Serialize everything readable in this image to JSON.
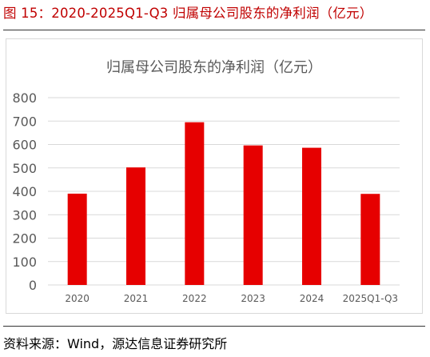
{
  "figure": {
    "title": "图 15：2020-2025Q1-Q3 归属母公司股东的净利润（亿元）",
    "source": "资料来源：Wind，源达信息证券研究所"
  },
  "chart_data": {
    "type": "bar",
    "title": "归属母公司股东的净利润（亿元）",
    "categories": [
      "2020",
      "2021",
      "2022",
      "2023",
      "2024",
      "2025Q1-Q3"
    ],
    "values": [
      390,
      502,
      695,
      596,
      586,
      389
    ],
    "xlabel": "",
    "ylabel": "",
    "ylim": [
      0,
      800
    ],
    "yticks": [
      0,
      100,
      200,
      300,
      400,
      500,
      600,
      700,
      800
    ],
    "grid": true,
    "legend": "none",
    "bar_color": "#e60000",
    "grid_color": "#d9d9d9",
    "tick_label_color": "#595959"
  }
}
